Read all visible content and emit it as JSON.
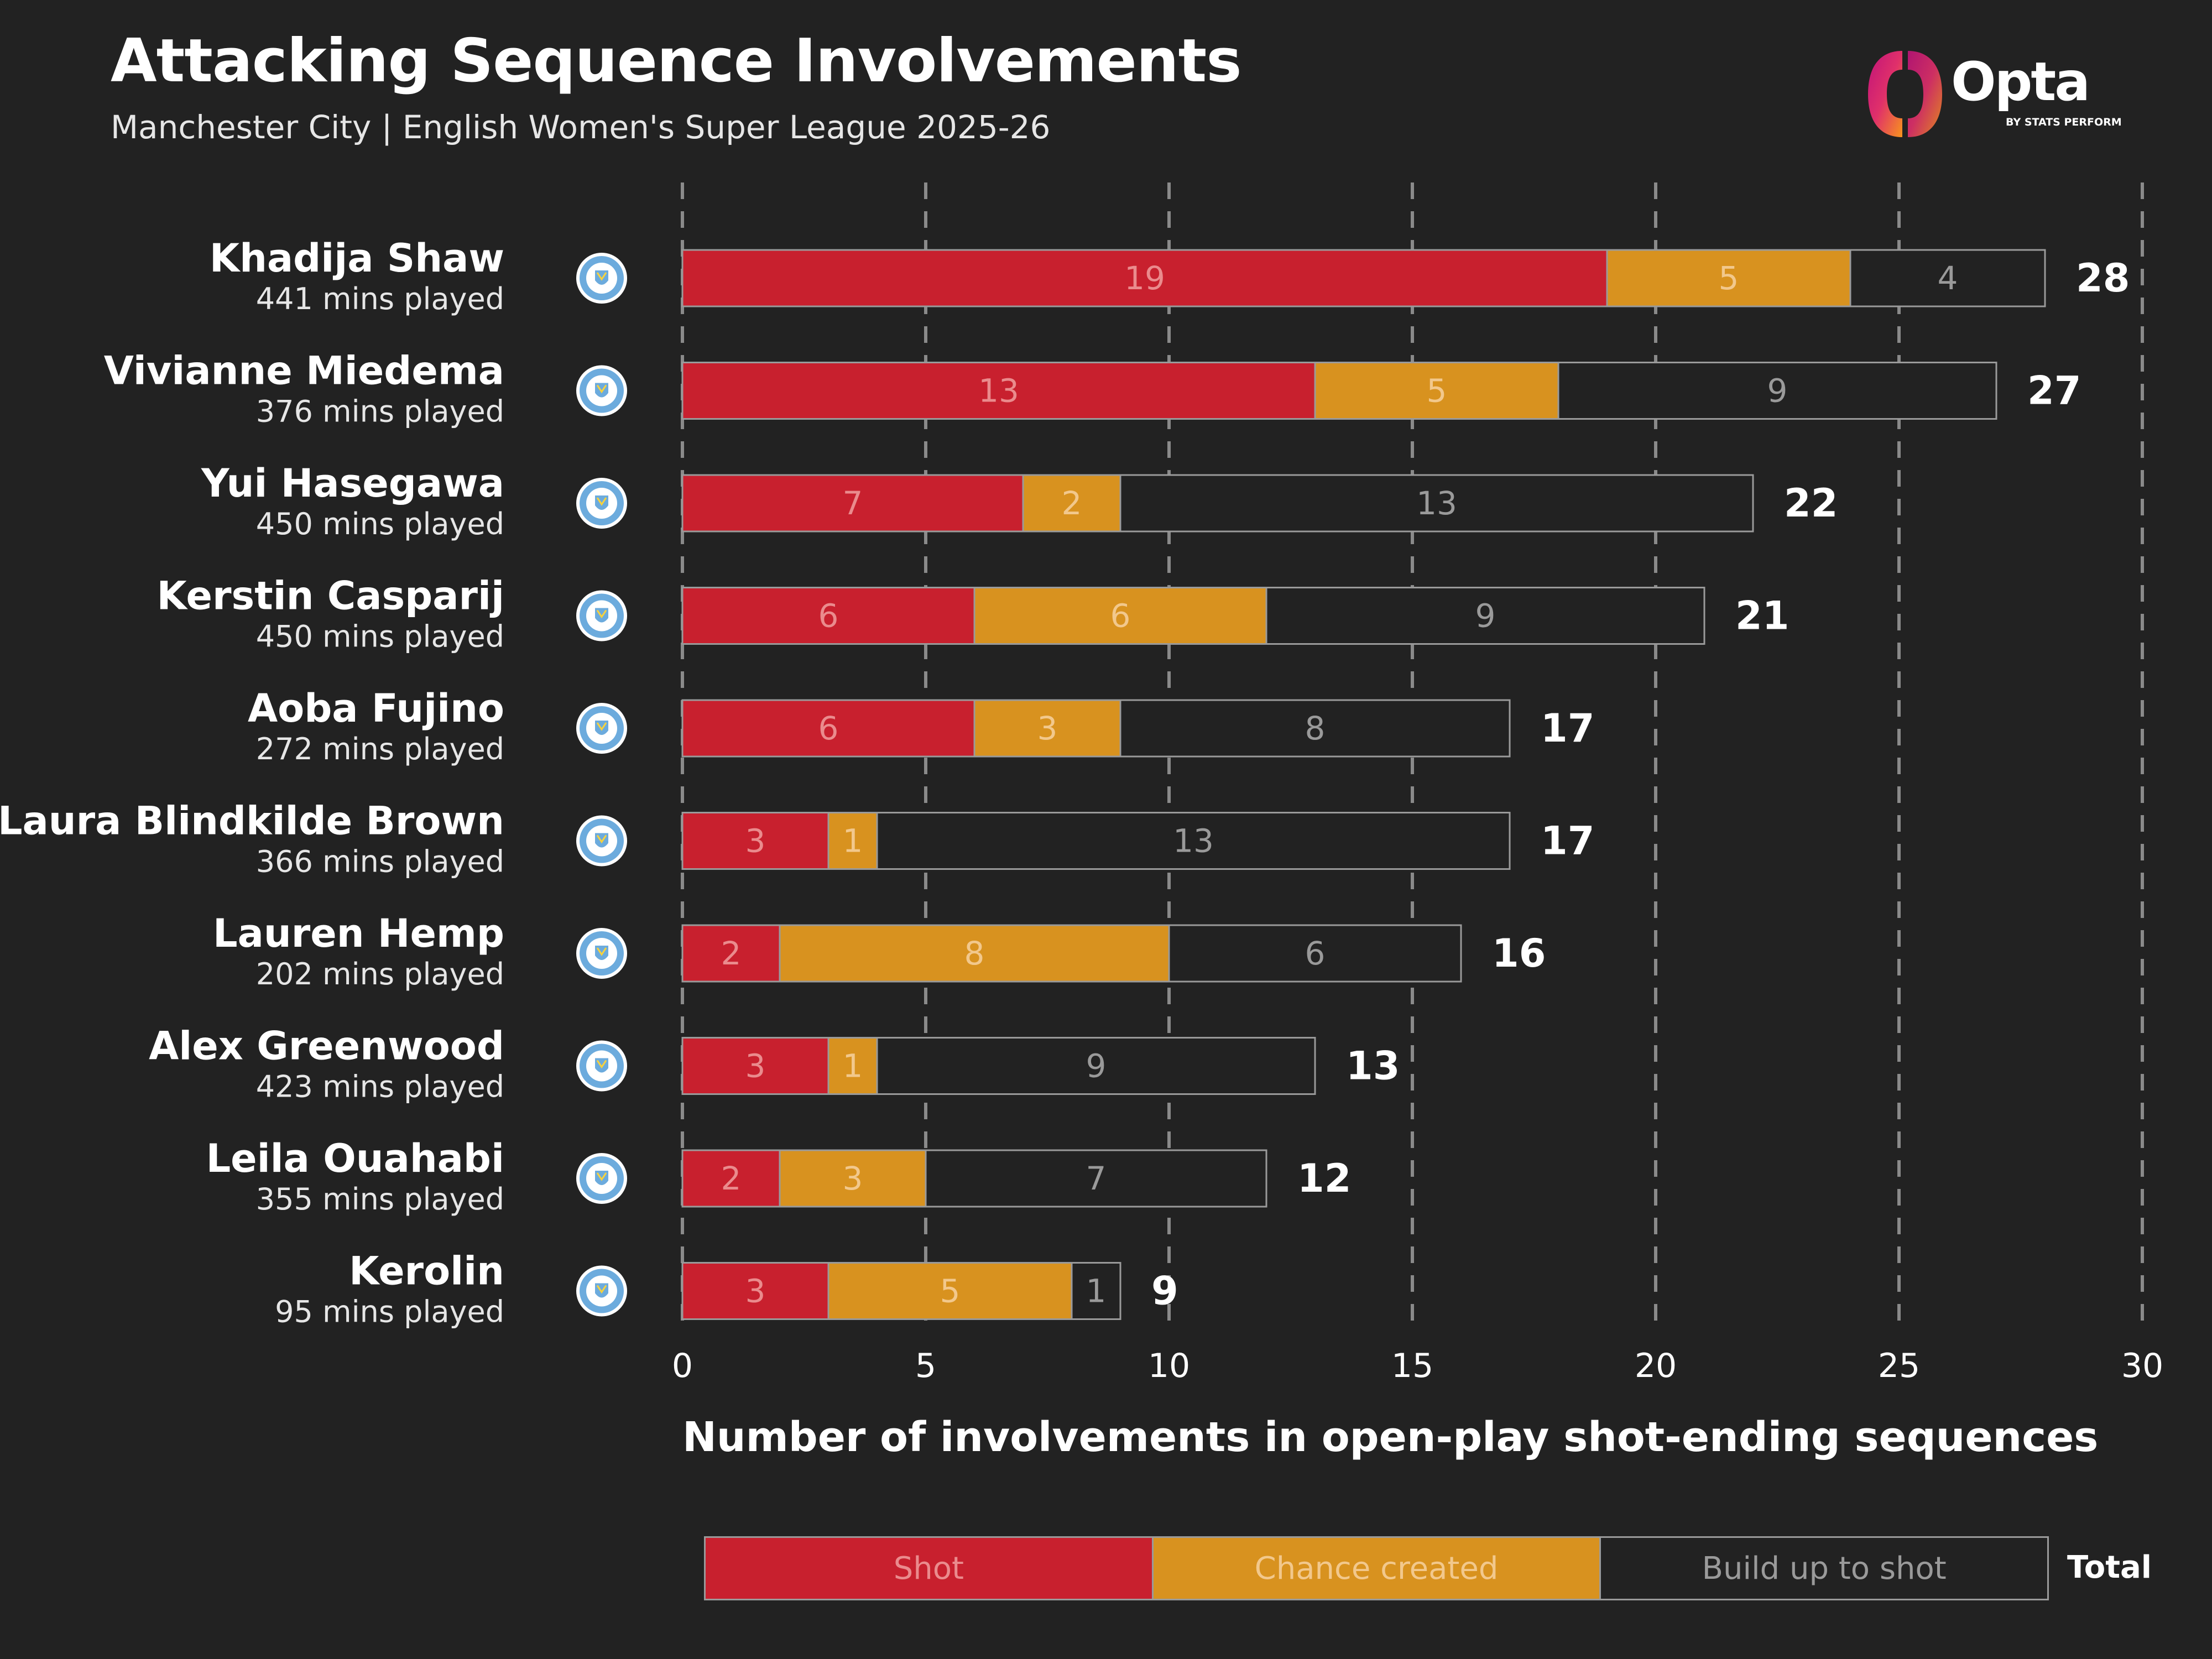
{
  "header": {
    "title": "Attacking Sequence Involvements",
    "subtitle": "Manchester City | English Women's Super League 2025-26"
  },
  "brand": {
    "name": "Opta",
    "tagline": "BY STATS PERFORM"
  },
  "legend": {
    "shot": "Shot",
    "chance": "Chance created",
    "build": "Build up to shot",
    "total": "Total"
  },
  "colors": {
    "background": "#222222",
    "shot": "#c8202e",
    "chance": "#d8921f",
    "build": "#222222",
    "outline": "#9a9a9a",
    "crest_blue": "#6cabdd"
  },
  "chart_data": {
    "type": "bar",
    "orientation": "horizontal",
    "stacked": true,
    "xlabel": "Number of involvements in open-play shot-ending sequences",
    "xlim": [
      0,
      30
    ],
    "xticks": [
      0,
      5,
      10,
      15,
      20,
      25,
      30
    ],
    "grid": "vertical dashed",
    "categories": [
      "Khadija Shaw",
      "Vivianne Miedema",
      "Yui Hasegawa",
      "Kerstin Casparij",
      "Aoba Fujino",
      "Laura Blindkilde Brown",
      "Lauren Hemp",
      "Alex Greenwood",
      "Leila Ouahabi",
      "Kerolin"
    ],
    "subtitles": [
      "441 mins played",
      "376 mins played",
      "450 mins played",
      "450 mins played",
      "272 mins played",
      "366 mins played",
      "202 mins played",
      "423 mins played",
      "355 mins played",
      "95 mins played"
    ],
    "series": [
      {
        "name": "Shot",
        "values": [
          19,
          13,
          7,
          6,
          6,
          3,
          2,
          3,
          2,
          3
        ]
      },
      {
        "name": "Chance created",
        "values": [
          5,
          5,
          2,
          6,
          3,
          1,
          8,
          1,
          3,
          5
        ]
      },
      {
        "name": "Build up to shot",
        "values": [
          4,
          9,
          13,
          9,
          8,
          13,
          6,
          9,
          7,
          1
        ]
      }
    ],
    "totals": [
      28,
      27,
      22,
      21,
      17,
      17,
      16,
      13,
      12,
      9
    ]
  }
}
